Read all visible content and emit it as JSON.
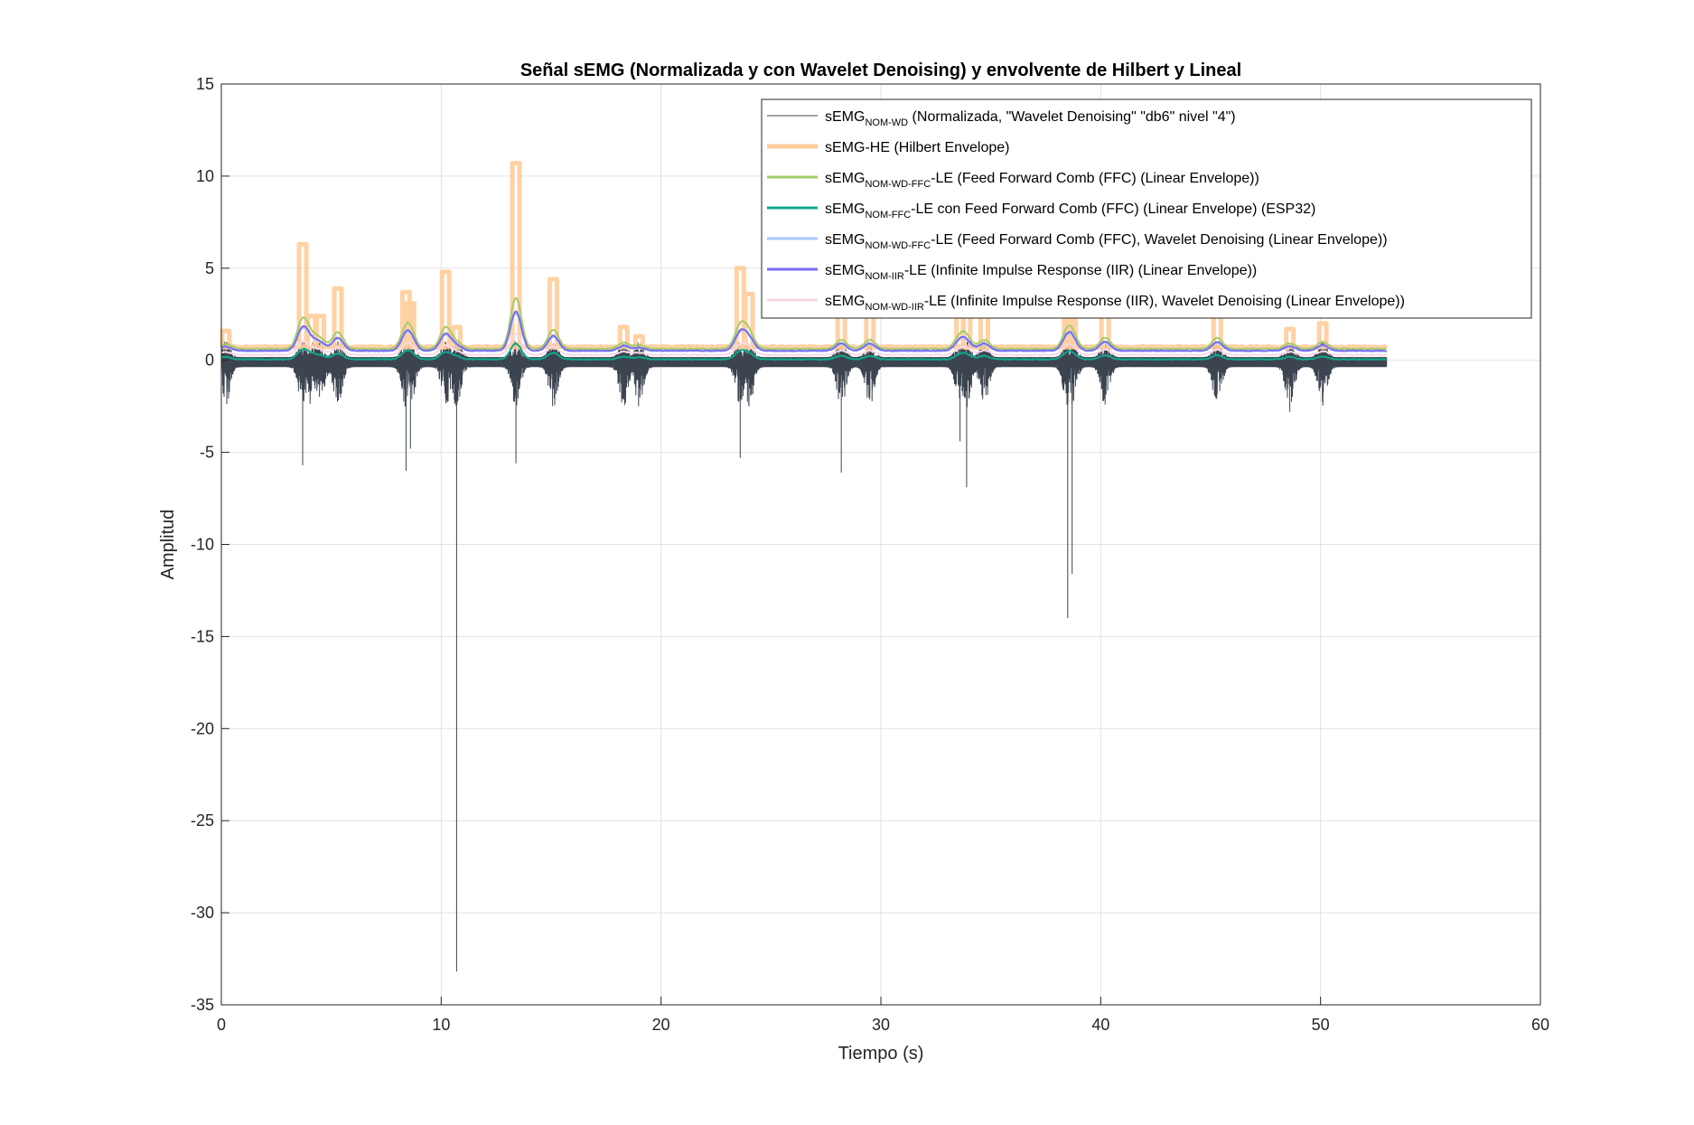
{
  "chart_data": {
    "type": "line",
    "title": "Señal sEMG (Normalizada y con Wavelet Denoising) y envolvente de Hilbert y Lineal",
    "xlabel": "Tiempo (s)",
    "ylabel": "Amplitud",
    "xlim": [
      0,
      60
    ],
    "ylim": [
      -35,
      15
    ],
    "xticks": [
      "0",
      "10",
      "20",
      "30",
      "40",
      "50",
      "60"
    ],
    "yticks": [
      "15",
      "10",
      "5",
      "0",
      "-5",
      "-10",
      "-15",
      "-20",
      "-25",
      "-30",
      "-35"
    ],
    "grid": true,
    "legend_position": "top-right",
    "signal_duration_s": 53,
    "bursts": [
      {
        "t": 0.2,
        "env": 1.6,
        "min": -0.6
      },
      {
        "t": 3.7,
        "env": 6.3,
        "min": -5.7
      },
      {
        "t": 4.1,
        "env": 2.4,
        "min": -1.0
      },
      {
        "t": 4.5,
        "env": 2.4,
        "min": -1.0
      },
      {
        "t": 5.3,
        "env": 3.9,
        "min": -1.6
      },
      {
        "t": 8.4,
        "env": 3.7,
        "min": -6.0
      },
      {
        "t": 8.6,
        "env": 3.1,
        "min": -4.8
      },
      {
        "t": 10.2,
        "env": 4.8,
        "min": -2.0
      },
      {
        "t": 10.7,
        "env": 1.8,
        "min": -33.2
      },
      {
        "t": 13.4,
        "env": 10.7,
        "min": -5.6
      },
      {
        "t": 15.1,
        "env": 4.4,
        "min": -1.4
      },
      {
        "t": 18.3,
        "env": 1.8,
        "min": -0.9
      },
      {
        "t": 19.0,
        "env": 1.3,
        "min": -0.8
      },
      {
        "t": 23.6,
        "env": 5.0,
        "min": -5.3
      },
      {
        "t": 24.0,
        "env": 3.6,
        "min": -2.5
      },
      {
        "t": 28.2,
        "env": 2.4,
        "min": -6.1
      },
      {
        "t": 29.5,
        "env": 2.4,
        "min": -1.0
      },
      {
        "t": 33.6,
        "env": 2.9,
        "min": -4.4
      },
      {
        "t": 33.9,
        "env": 2.5,
        "min": -6.9
      },
      {
        "t": 34.7,
        "env": 2.4,
        "min": -1.5
      },
      {
        "t": 38.5,
        "env": 3.7,
        "min": -14.0
      },
      {
        "t": 38.7,
        "env": 2.6,
        "min": -11.6
      },
      {
        "t": 40.2,
        "env": 2.8,
        "min": -2.4
      },
      {
        "t": 45.3,
        "env": 2.8,
        "min": -1.3
      },
      {
        "t": 48.6,
        "env": 1.7,
        "min": -2.8
      },
      {
        "t": 50.1,
        "env": 2.0,
        "min": -1.2
      }
    ],
    "series": [
      {
        "name_main": "sEMG",
        "name_sub": "NOM-WD",
        "name_rest": " (Normalizada, \"Wavelet Denoising\" \"db6\" nivel \"4\")",
        "color": "#3c4450",
        "kind": "raw",
        "baseline": 0.0
      },
      {
        "name_main": "sEMG-HE (Hilbert Envelope)",
        "name_sub": "",
        "name_rest": "",
        "color": "#ffcc99",
        "kind": "hilbert",
        "baseline": 0.72
      },
      {
        "name_main": "sEMG",
        "name_sub": "NOM-WD-FFC",
        "name_rest": "-LE (Feed Forward Comb (FFC) (Linear Envelope))",
        "color": "#a4cc6b",
        "kind": "envelope",
        "baseline": 0.62,
        "gain": 0.55
      },
      {
        "name_main": "sEMG",
        "name_sub": "NOM-FFC",
        "name_rest": "-LE con Feed Forward Comb (FFC) (Linear Envelope) (ESP32)",
        "color": "#10a88c",
        "kind": "envelope",
        "baseline": 0.05,
        "gain": 0.16
      },
      {
        "name_main": "sEMG",
        "name_sub": "NOM-WD-FFC",
        "name_rest": "-LE (Feed Forward Comb (FFC), Wavelet Denoising (Linear Envelope))",
        "color": "#a6c8ff",
        "kind": "envelope",
        "baseline": 0.5,
        "gain": 0.4
      },
      {
        "name_main": "sEMG",
        "name_sub": "NOM-IIR",
        "name_rest": "-LE (Infinite Impulse Response (IIR) (Linear Envelope))",
        "color": "#7a6cf0",
        "kind": "envelope",
        "baseline": 0.52,
        "gain": 0.42
      },
      {
        "name_main": "sEMG",
        "name_sub": "NOM-WD-IIR",
        "name_rest": "-LE (Infinite Impulse Response (IIR), Wavelet Denoising (Linear Envelope))",
        "color": "#f7d9e6",
        "kind": "envelope",
        "baseline": 0.3,
        "gain": 0.22
      }
    ]
  }
}
